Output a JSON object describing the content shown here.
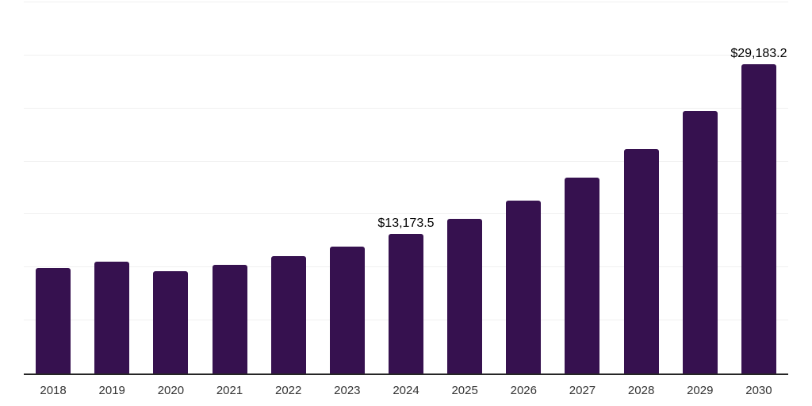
{
  "chart_data": {
    "type": "bar",
    "title": "",
    "xlabel": "",
    "ylabel": "",
    "categories": [
      "2018",
      "2019",
      "2020",
      "2021",
      "2022",
      "2023",
      "2024",
      "2025",
      "2026",
      "2027",
      "2028",
      "2029",
      "2030"
    ],
    "values": [
      9980,
      10520,
      9630,
      10280,
      11080,
      11960,
      13173.5,
      14570,
      16320,
      18490,
      21180,
      24730,
      29183.2
    ],
    "data_labels": [
      {
        "category": "2024",
        "text": "$13,173.5"
      },
      {
        "category": "2030",
        "text": "$29,183.2"
      }
    ],
    "ylim": [
      0,
      35000
    ],
    "grid_step": 5000,
    "grid": "horizontal-only",
    "legend": "none",
    "colors": {
      "bar": "#36114F",
      "gridline": "#f0f0f0",
      "axis_line": "#262626",
      "value_label": "#000000",
      "tick_label": "#333333",
      "background": "#ffffff"
    }
  }
}
